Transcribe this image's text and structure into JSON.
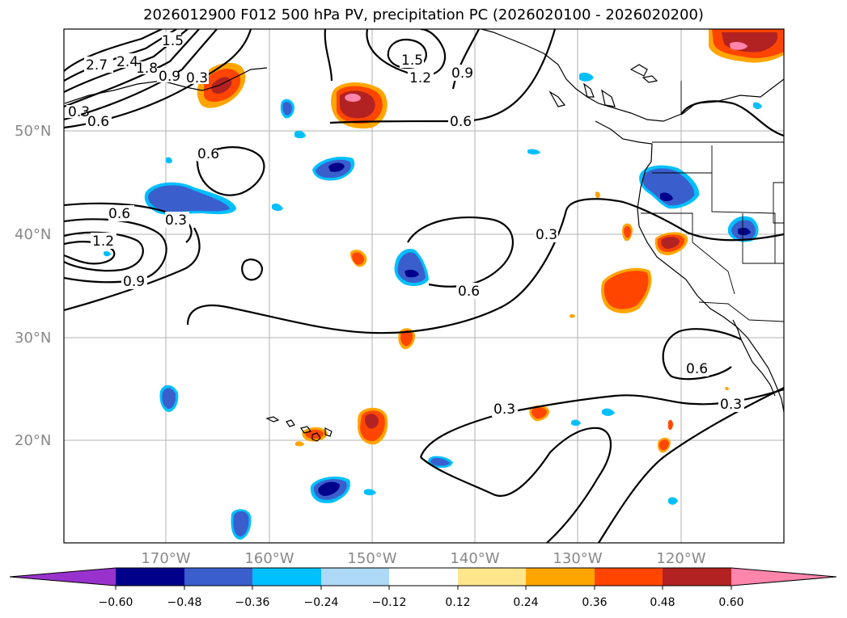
{
  "title": "2026012900 F012 500 hPa PV, precipitation PC (2026020100 - 2026020200)",
  "lat_labels": [
    "50°N",
    "40°N",
    "30°N",
    "20°N"
  ],
  "lon_labels": [
    "170°W",
    "160°W",
    "150°W",
    "140°W",
    "130°W",
    "120°W"
  ],
  "colorbar": {
    "ticks": [
      "−0.60",
      "−0.48",
      "−0.36",
      "−0.24",
      "−0.12",
      "0.12",
      "0.24",
      "0.36",
      "0.48",
      "0.60"
    ],
    "colors": [
      "#9932cc",
      "#00008b",
      "#3a5fcd",
      "#00bfff",
      "#add8f6",
      "#ffffff",
      "#ffe68c",
      "#ffa500",
      "#ff4500",
      "#b22222",
      "#ff85ad"
    ]
  },
  "contour_labels": [
    "2.7",
    "2.4",
    "1.8",
    "1.5",
    "0.9",
    "0.3",
    "1.5",
    "1.2",
    "0.9",
    "0.6",
    "0.6",
    "0.3",
    "0.6",
    "0.6",
    "0.3",
    "1.2",
    "0.9",
    "0.3",
    "0.6",
    "0.6",
    "0.3",
    "0.3"
  ],
  "colors": {
    "contour": "#000000",
    "grid": "#b0b0b0",
    "coast": "#000000"
  }
}
